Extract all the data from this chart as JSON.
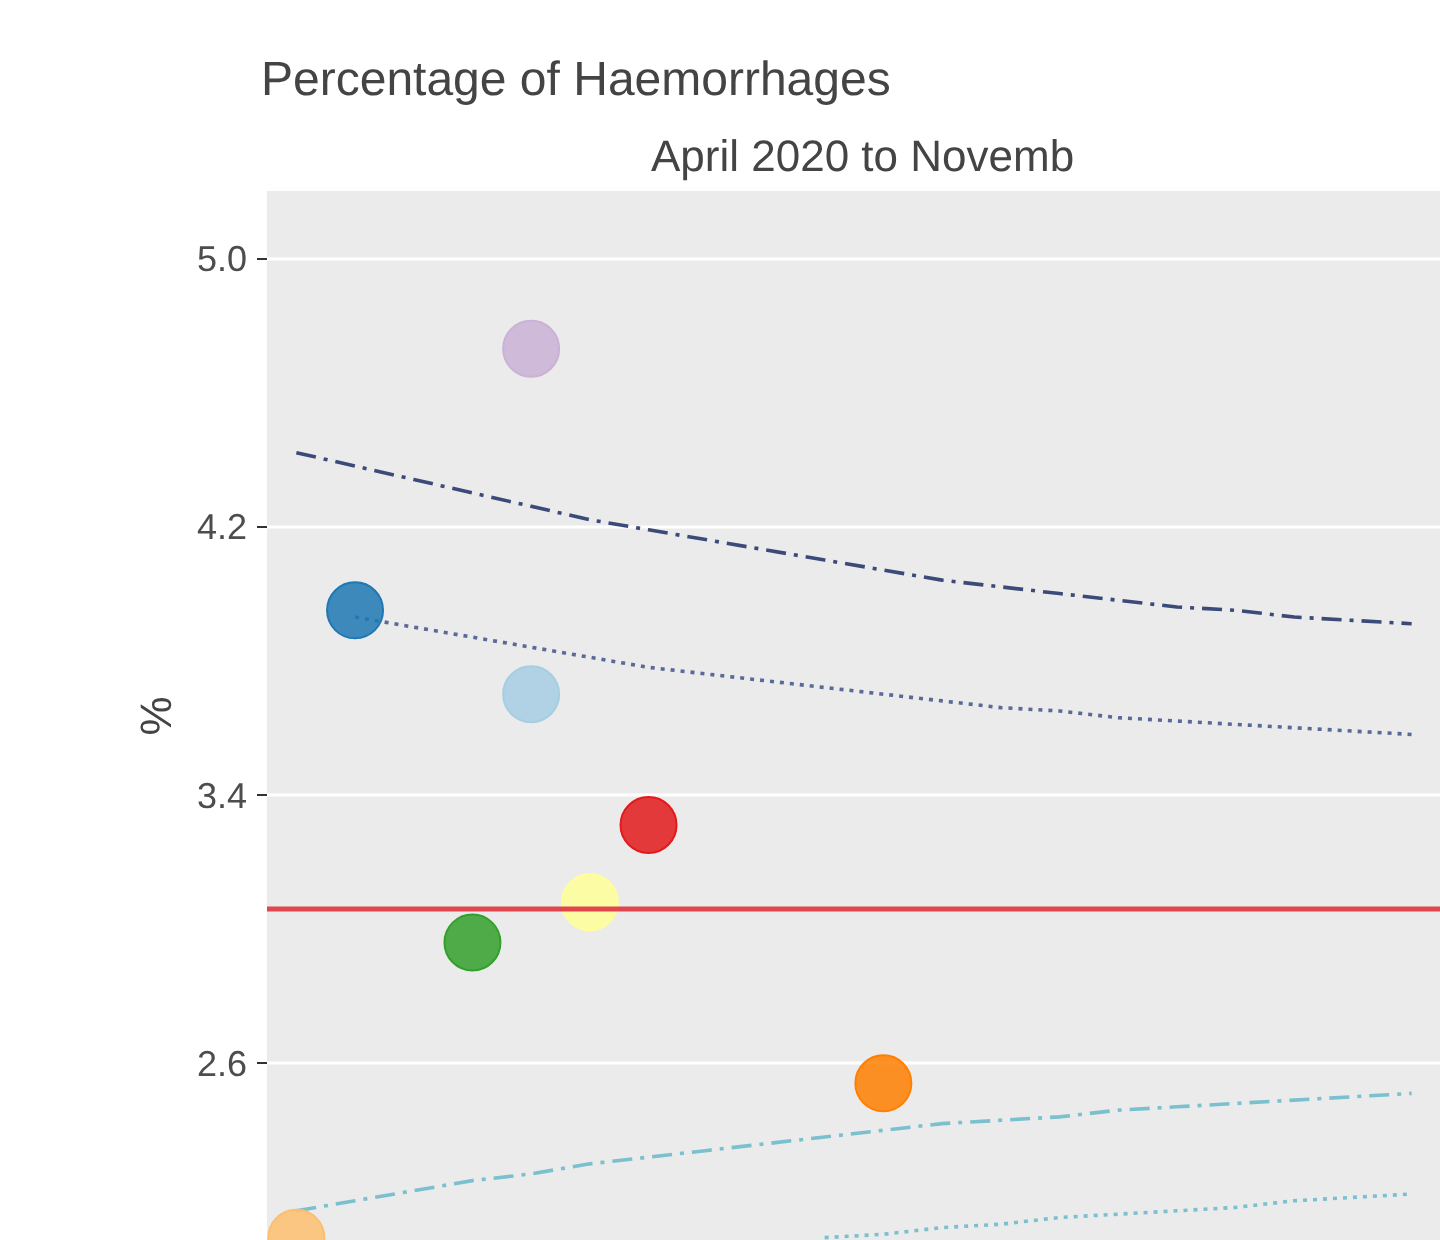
{
  "chart_data": {
    "type": "scatter",
    "title": "Percentage of Haemorrhages",
    "subtitle": "April 2020 to Novemb",
    "ylabel": "%",
    "categories": [
      null,
      null,
      null,
      null,
      null,
      null,
      null,
      null,
      null,
      null,
      null,
      null,
      null,
      null,
      null,
      null,
      null,
      null,
      null,
      null
    ],
    "ylim": [
      2.07,
      5.2
    ],
    "yticks": [
      {
        "value": 2.6,
        "label": "2.6"
      },
      {
        "value": 3.4,
        "label": "3.4"
      },
      {
        "value": 4.2,
        "label": "4.2"
      },
      {
        "value": 5.0,
        "label": "5.0"
      }
    ],
    "tick_labels": "y",
    "grid": "y",
    "marker": "circle",
    "ref_lines": [
      {
        "axis": "y",
        "value": 3.06,
        "color": "#e0474c"
      }
    ],
    "series": [
      {
        "type": "line",
        "marker": "none",
        "color": "#3b4a78",
        "line_style": "dashed",
        "values": [
          4.42,
          4.38,
          4.34,
          4.3,
          4.26,
          4.22,
          4.19,
          4.16,
          4.13,
          4.1,
          4.07,
          4.04,
          4.02,
          4.0,
          3.98,
          3.96,
          3.95,
          3.93,
          3.92,
          3.91
        ]
      },
      {
        "type": "line",
        "marker": "none",
        "color": "#5a6a98",
        "line_style": "dotted",
        "values": [
          null,
          3.93,
          3.9,
          3.87,
          3.84,
          3.81,
          3.78,
          3.76,
          3.74,
          3.72,
          3.7,
          3.68,
          3.66,
          3.65,
          3.63,
          3.62,
          3.61,
          3.6,
          3.59,
          3.58
        ]
      },
      {
        "type": "line",
        "marker": "none",
        "color": "#7ac0cf",
        "line_style": "dashed",
        "values": [
          2.16,
          2.19,
          2.22,
          2.25,
          2.27,
          2.3,
          2.32,
          2.34,
          2.36,
          2.38,
          2.4,
          2.42,
          2.43,
          2.44,
          2.46,
          2.47,
          2.48,
          2.49,
          2.5,
          2.51
        ]
      },
      {
        "type": "line",
        "marker": "none",
        "color": "#7ac0cf",
        "line_style": "dotted",
        "values": [
          null,
          null,
          null,
          null,
          null,
          null,
          null,
          null,
          null,
          2.08,
          2.09,
          2.11,
          2.12,
          2.14,
          2.15,
          2.16,
          2.17,
          2.19,
          2.2,
          2.21
        ]
      },
      {
        "values": [
          2.08,
          3.95,
          null,
          2.96,
          4.73,
          3.08,
          3.31,
          null,
          null,
          null,
          2.54,
          null,
          null,
          null,
          null,
          null,
          null,
          null,
          null,
          null
        ],
        "colors": [
          "#fdbf6f",
          "#1f78b4",
          null,
          "#33a02c",
          "#cab2d6",
          "#ffff99",
          "#e31a1c",
          null,
          null,
          null,
          "#ff7f00",
          null,
          null,
          null,
          null,
          null,
          null,
          null,
          null,
          null
        ]
      },
      {
        "color": "#a6cee3",
        "values": [
          null,
          null,
          null,
          null,
          3.7,
          null,
          null,
          null,
          null,
          null,
          null,
          null,
          null,
          null,
          null,
          null,
          null,
          null,
          null,
          null
        ]
      }
    ]
  }
}
